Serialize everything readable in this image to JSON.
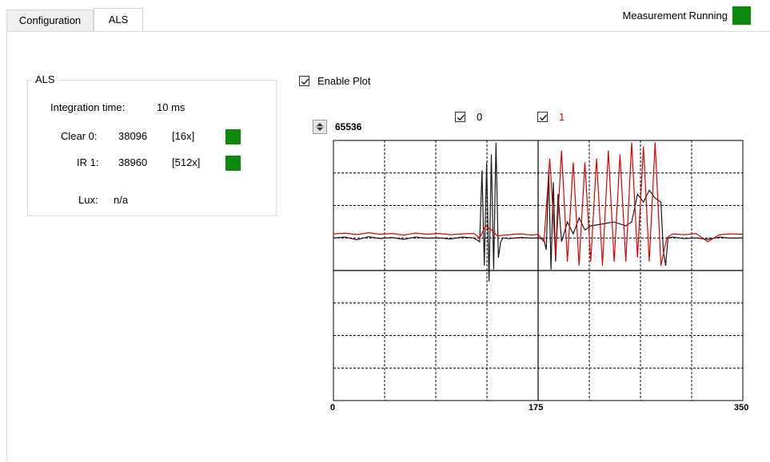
{
  "tabs": [
    {
      "label": "Configuration",
      "active": false
    },
    {
      "label": "ALS",
      "active": true
    }
  ],
  "status": {
    "label": "Measurement Running",
    "indicator_color": "#0b8a0b"
  },
  "als_group": {
    "title": "ALS",
    "integration_label": "Integration time:",
    "integration_value": "10 ms",
    "channels": [
      {
        "label": "Clear 0:",
        "value": "38096",
        "gain": "[16x]",
        "indicator_color": "#0b8a0b"
      },
      {
        "label": "IR 1:",
        "value": "38960",
        "gain": "[512x]",
        "indicator_color": "#0b8a0b"
      }
    ],
    "lux_label": "Lux:",
    "lux_value": "n/a"
  },
  "plot_controls": {
    "enable_plot_label": "Enable Plot",
    "enable_plot_checked": true,
    "y_max": "65536",
    "series_toggles": [
      {
        "label": "0",
        "checked": true,
        "color": "#000000"
      },
      {
        "label": "1",
        "checked": true,
        "color": "#e00000"
      }
    ]
  },
  "chart_data": {
    "type": "line",
    "x_ticks": [
      "0",
      "175",
      "350"
    ],
    "xlim": [
      0,
      350
    ],
    "ylim": [
      0,
      65536
    ],
    "grid": true,
    "series": [
      {
        "name": "0",
        "color": "#1a1a1a",
        "points": [
          [
            0,
            41000
          ],
          [
            10,
            41200
          ],
          [
            20,
            40500
          ],
          [
            30,
            41300
          ],
          [
            40,
            40800
          ],
          [
            50,
            41100
          ],
          [
            60,
            40600
          ],
          [
            70,
            41200
          ],
          [
            80,
            40900
          ],
          [
            90,
            41000
          ],
          [
            100,
            40700
          ],
          [
            110,
            41200
          ],
          [
            120,
            41000
          ],
          [
            125,
            40000
          ],
          [
            127,
            58000
          ],
          [
            129,
            34000
          ],
          [
            131,
            60000
          ],
          [
            133,
            30000
          ],
          [
            135,
            62000
          ],
          [
            137,
            33000
          ],
          [
            139,
            65000
          ],
          [
            141,
            36000
          ],
          [
            143,
            40000
          ],
          [
            145,
            41000
          ],
          [
            150,
            40800
          ],
          [
            160,
            41100
          ],
          [
            170,
            40900
          ],
          [
            175,
            41000
          ],
          [
            180,
            40500
          ],
          [
            182,
            38000
          ],
          [
            184,
            58000
          ],
          [
            186,
            33000
          ],
          [
            188,
            55000
          ],
          [
            190,
            35000
          ],
          [
            192,
            52000
          ],
          [
            195,
            40000
          ],
          [
            200,
            45000
          ],
          [
            205,
            42000
          ],
          [
            210,
            46000
          ],
          [
            215,
            43000
          ],
          [
            220,
            44000
          ],
          [
            230,
            44500
          ],
          [
            240,
            45000
          ],
          [
            250,
            44000
          ],
          [
            255,
            45000
          ],
          [
            260,
            52000
          ],
          [
            265,
            50000
          ],
          [
            270,
            53000
          ],
          [
            275,
            51000
          ],
          [
            280,
            50000
          ],
          [
            282,
            38000
          ],
          [
            284,
            34000
          ],
          [
            286,
            41000
          ],
          [
            290,
            41200
          ],
          [
            300,
            40800
          ],
          [
            310,
            41000
          ],
          [
            320,
            40600
          ],
          [
            330,
            41200
          ],
          [
            340,
            40900
          ],
          [
            350,
            41000
          ]
        ]
      },
      {
        "name": "1",
        "color": "#e00000",
        "points": [
          [
            0,
            42000
          ],
          [
            10,
            42200
          ],
          [
            20,
            41800
          ],
          [
            30,
            42300
          ],
          [
            40,
            41900
          ],
          [
            50,
            42100
          ],
          [
            60,
            41700
          ],
          [
            70,
            42200
          ],
          [
            80,
            41900
          ],
          [
            90,
            42100
          ],
          [
            100,
            41800
          ],
          [
            110,
            42000
          ],
          [
            120,
            42100
          ],
          [
            125,
            41000
          ],
          [
            130,
            44000
          ],
          [
            135,
            43000
          ],
          [
            140,
            41500
          ],
          [
            150,
            41800
          ],
          [
            160,
            42000
          ],
          [
            170,
            41700
          ],
          [
            175,
            41900
          ],
          [
            180,
            40000
          ],
          [
            185,
            61000
          ],
          [
            190,
            36000
          ],
          [
            195,
            63000
          ],
          [
            200,
            35000
          ],
          [
            205,
            60000
          ],
          [
            210,
            34000
          ],
          [
            215,
            60000
          ],
          [
            220,
            35000
          ],
          [
            225,
            61000
          ],
          [
            230,
            34000
          ],
          [
            235,
            63000
          ],
          [
            240,
            35000
          ],
          [
            245,
            62000
          ],
          [
            250,
            35000
          ],
          [
            255,
            65000
          ],
          [
            260,
            36000
          ],
          [
            265,
            64000
          ],
          [
            270,
            35000
          ],
          [
            275,
            65000
          ],
          [
            280,
            34000
          ],
          [
            285,
            41000
          ],
          [
            290,
            42000
          ],
          [
            300,
            41800
          ],
          [
            310,
            42100
          ],
          [
            320,
            40000
          ],
          [
            330,
            41800
          ],
          [
            340,
            42000
          ],
          [
            350,
            41900
          ]
        ]
      }
    ]
  }
}
